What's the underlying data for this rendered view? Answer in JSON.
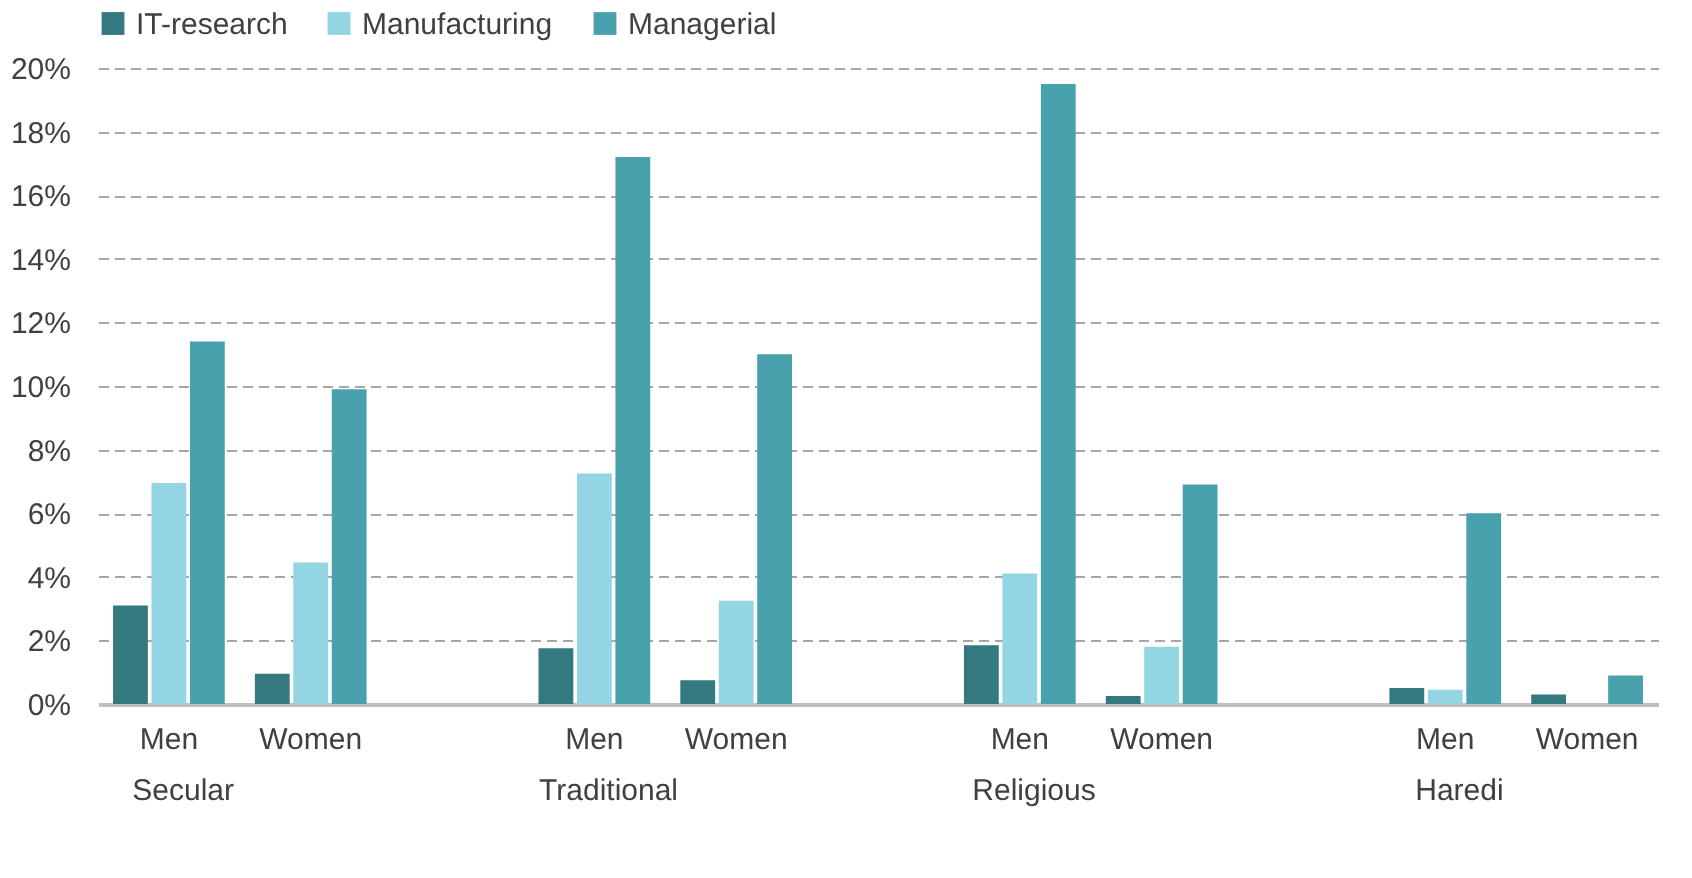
{
  "chart_data": {
    "type": "bar",
    "categories": [
      "Men",
      "Women",
      null,
      "Men",
      "Women",
      null,
      "Men",
      "Women",
      null,
      "Men",
      "Women"
    ],
    "series": [
      {
        "name": "IT-research",
        "color": "#347880",
        "values": [
          3.1,
          0.95,
          null,
          1.75,
          0.75,
          null,
          1.85,
          0.25,
          null,
          0.5,
          0.3
        ]
      },
      {
        "name": "Manufacturing",
        "color": "#93d5e2",
        "values": [
          6.95,
          4.45,
          null,
          7.25,
          3.25,
          null,
          4.1,
          1.8,
          null,
          0.45,
          null
        ]
      },
      {
        "name": "Managerial",
        "color": "#4aa1ae",
        "values": [
          11.4,
          9.9,
          null,
          17.2,
          11.0,
          null,
          19.5,
          6.9,
          null,
          6.0,
          0.9
        ]
      }
    ],
    "annotations": [
      "Secular",
      "Traditional",
      "Religious",
      "Haredi"
    ],
    "ylim": [
      0,
      20
    ],
    "yticks": [
      {
        "value": 0,
        "label": "0%"
      },
      {
        "value": 2,
        "label": "2%"
      },
      {
        "value": 4,
        "label": "4%"
      },
      {
        "value": 6,
        "label": "6%"
      },
      {
        "value": 8,
        "label": "8%"
      },
      {
        "value": 10,
        "label": "10%"
      },
      {
        "value": 12,
        "label": "12%"
      },
      {
        "value": 14,
        "label": "14%"
      },
      {
        "value": 16,
        "label": "16%"
      },
      {
        "value": 18,
        "label": "18%"
      },
      {
        "value": 20,
        "label": "20%"
      }
    ],
    "grid": "y",
    "legend": "top left"
  }
}
